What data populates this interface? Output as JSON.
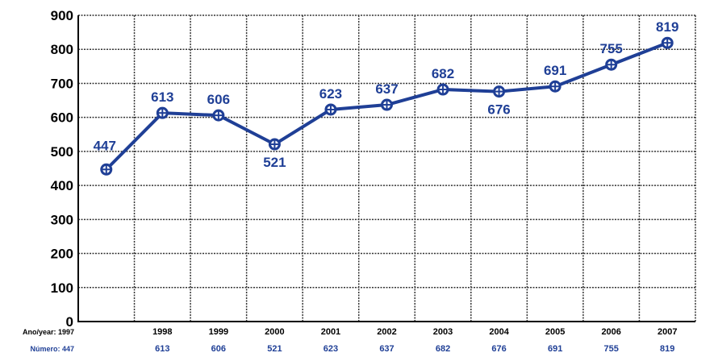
{
  "chart_data": {
    "type": "line",
    "categories": [
      "1997",
      "1998",
      "1999",
      "2000",
      "2001",
      "2002",
      "2003",
      "2004",
      "2005",
      "2006",
      "2007"
    ],
    "series": [
      {
        "values": [
          447,
          613,
          606,
          521,
          623,
          637,
          682,
          676,
          691,
          755,
          819
        ]
      }
    ],
    "data_labels": [
      "447",
      "613",
      "606",
      "521",
      "623",
      "637",
      "682",
      "676",
      "691",
      "755",
      "819"
    ],
    "y_ticks": [
      "0",
      "100",
      "200",
      "300",
      "400",
      "500",
      "600",
      "700",
      "800",
      "900"
    ],
    "ylim": [
      0,
      900
    ],
    "grid": true,
    "row_labels": {
      "row1": "Ano/year: 1997",
      "row2": "Número: 447"
    },
    "row2_values": [
      "447",
      "613",
      "606",
      "521",
      "623",
      "637",
      "682",
      "676",
      "691",
      "755",
      "819"
    ],
    "colors": {
      "line": "#1f3f96",
      "grid": "#333333",
      "axis": "#000000"
    }
  }
}
